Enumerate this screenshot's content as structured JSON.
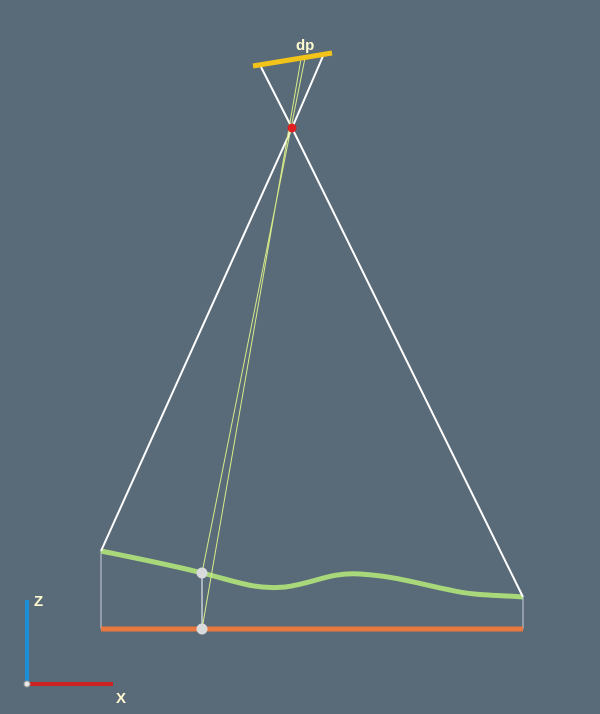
{
  "labels": {
    "detector": "dp",
    "z_axis": "Z",
    "x_axis": "X"
  },
  "colors": {
    "background": "#596a79",
    "detector": "#f2c41a",
    "source": "#e02020",
    "rays": "#ffffff",
    "thin_rays": "#d8ec8a",
    "surface": "#a8d87a",
    "baseline": "#e87840",
    "z_axis": "#1b8fd6",
    "x_axis": "#cc2222",
    "points": "#d8dadc",
    "text": "#fffbd0"
  }
}
